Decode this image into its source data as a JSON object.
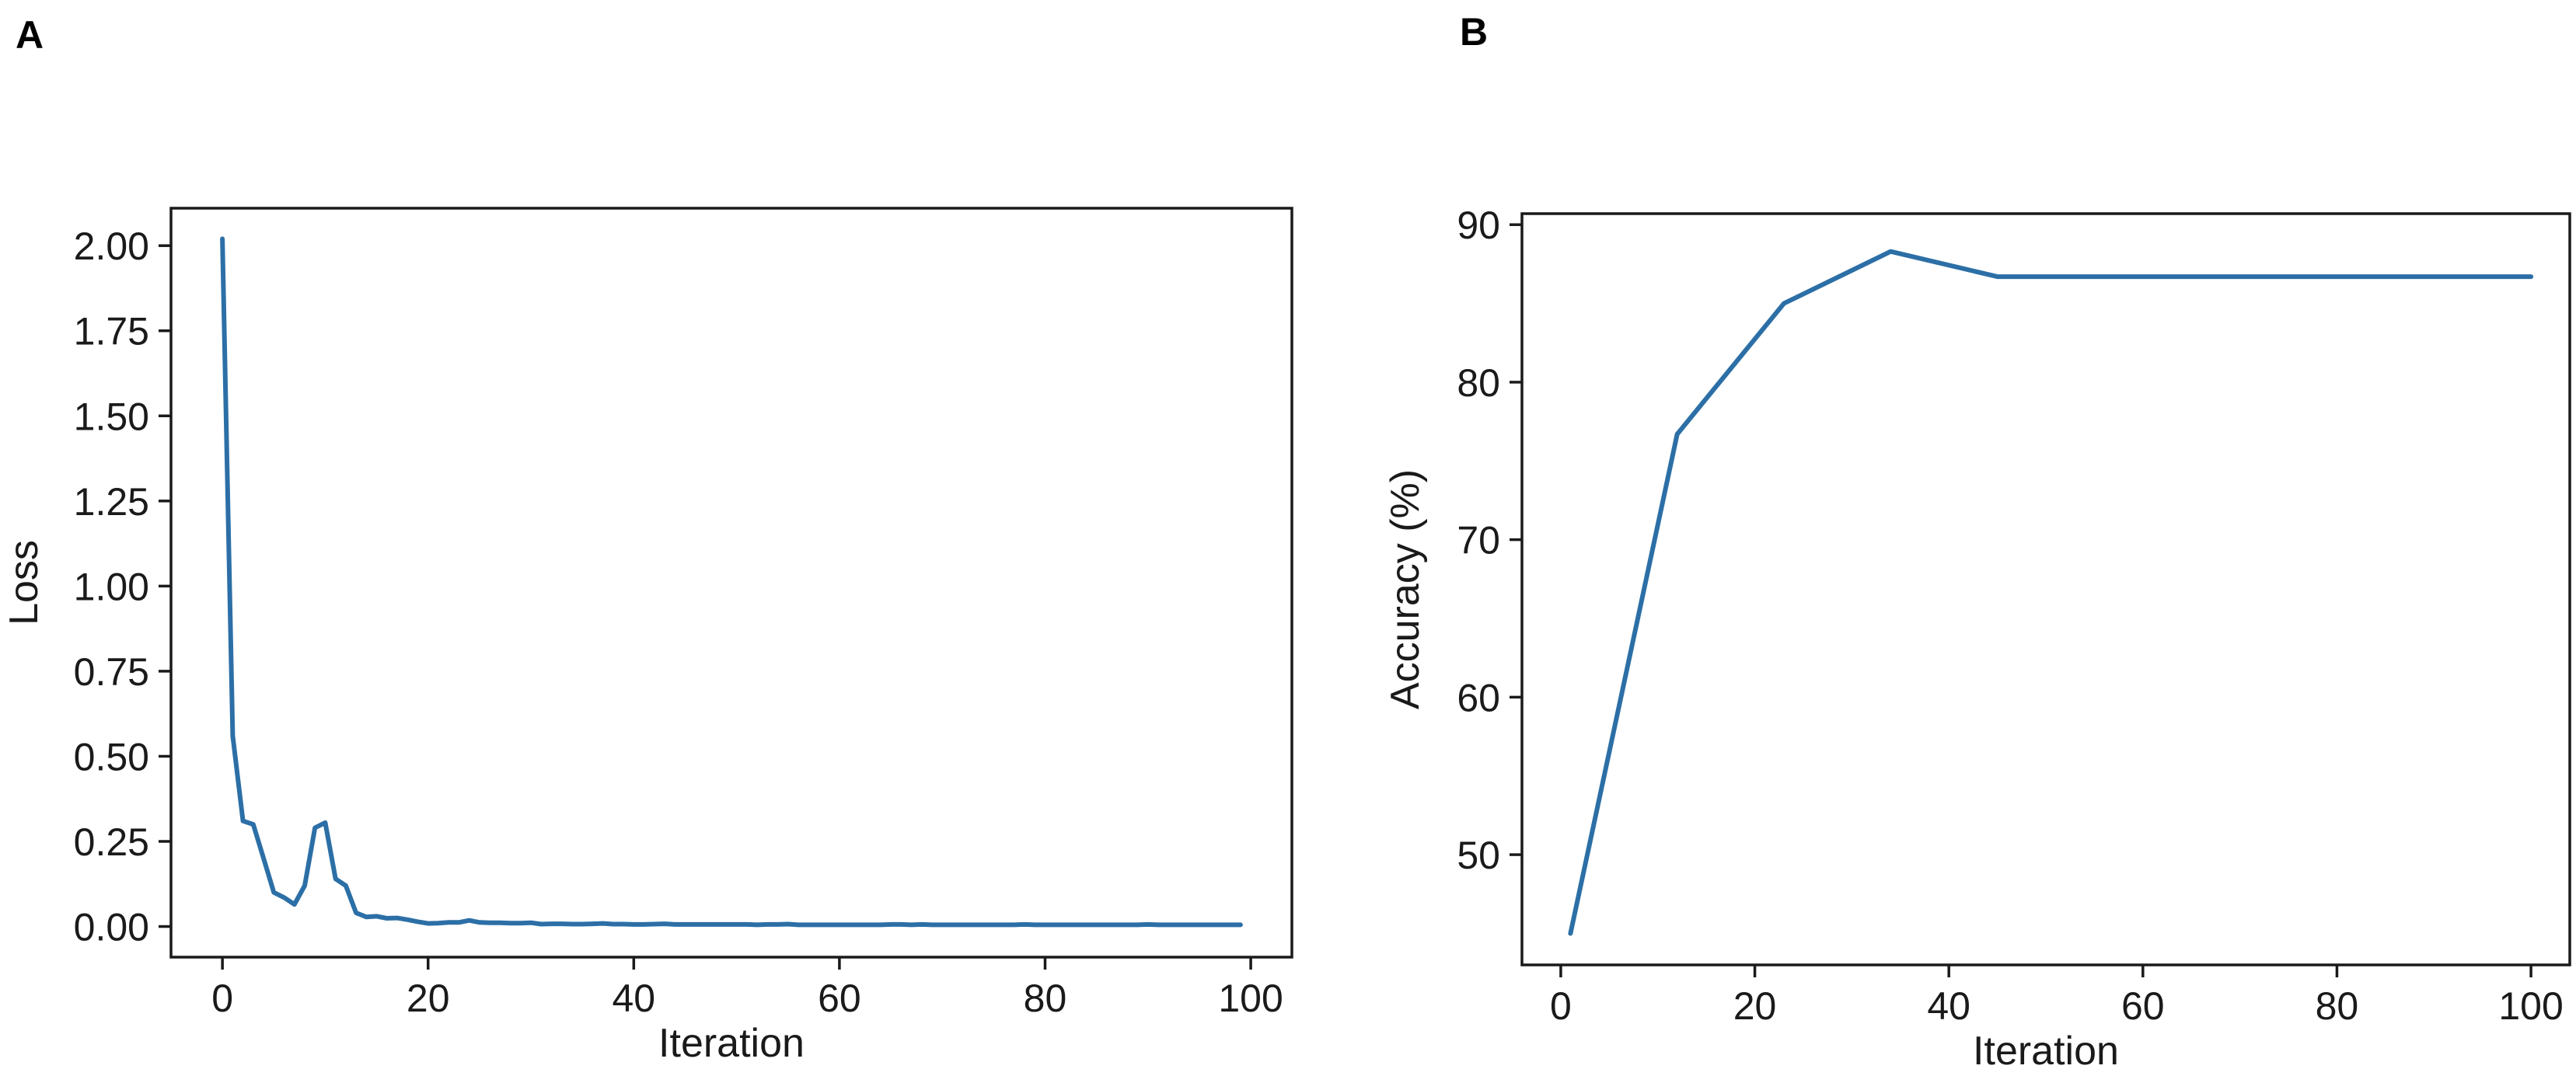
{
  "panels": [
    {
      "letter": "A"
    },
    {
      "letter": "B"
    }
  ],
  "colors": {
    "series": "#2c6fa6",
    "axes": "#1a1a1a"
  },
  "chart_data": [
    {
      "type": "line",
      "panel": "A",
      "title": "",
      "xlabel": "Iteration",
      "ylabel": "Loss",
      "xlim": [
        -5,
        104
      ],
      "ylim": [
        -0.09,
        2.11
      ],
      "xticks": [
        0,
        20,
        40,
        60,
        80,
        100
      ],
      "xtick_labels": [
        "0",
        "20",
        "40",
        "60",
        "80",
        "100"
      ],
      "yticks": [
        0,
        0.25,
        0.5,
        0.75,
        1.0,
        1.25,
        1.5,
        1.75,
        2.0
      ],
      "ytick_labels": [
        "0.00",
        "0.25",
        "0.50",
        "0.75",
        "1.00",
        "1.25",
        "1.50",
        "1.75",
        "2.00"
      ],
      "grid": false,
      "series": [
        {
          "x": [
            0,
            1,
            2,
            3,
            4,
            5,
            6,
            7,
            8,
            9,
            10,
            11,
            12,
            13,
            14,
            15,
            16,
            17,
            18,
            19,
            20,
            21,
            22,
            23,
            24,
            25,
            26,
            27,
            28,
            29,
            30,
            31,
            32,
            33,
            34,
            35,
            36,
            37,
            38,
            39,
            40,
            41,
            42,
            43,
            44,
            45,
            46,
            47,
            48,
            49,
            50,
            51,
            52,
            53,
            54,
            55,
            56,
            57,
            58,
            59,
            60,
            61,
            62,
            63,
            64,
            65,
            66,
            67,
            68,
            69,
            70,
            71,
            72,
            73,
            74,
            75,
            76,
            77,
            78,
            79,
            80,
            81,
            82,
            83,
            84,
            85,
            86,
            87,
            88,
            89,
            90,
            91,
            92,
            93,
            94,
            95,
            96,
            97,
            98,
            99
          ],
          "values": [
            2.02,
            0.56,
            0.31,
            0.3,
            0.2,
            0.1,
            0.085,
            0.065,
            0.12,
            0.29,
            0.305,
            0.14,
            0.12,
            0.04,
            0.028,
            0.03,
            0.024,
            0.025,
            0.02,
            0.014,
            0.009,
            0.01,
            0.012,
            0.012,
            0.018,
            0.012,
            0.011,
            0.011,
            0.01,
            0.01,
            0.011,
            0.007,
            0.008,
            0.008,
            0.007,
            0.007,
            0.008,
            0.009,
            0.007,
            0.007,
            0.006,
            0.006,
            0.007,
            0.008,
            0.006,
            0.006,
            0.006,
            0.006,
            0.006,
            0.006,
            0.006,
            0.006,
            0.005,
            0.006,
            0.006,
            0.007,
            0.005,
            0.005,
            0.005,
            0.005,
            0.005,
            0.005,
            0.005,
            0.005,
            0.005,
            0.006,
            0.006,
            0.005,
            0.006,
            0.005,
            0.005,
            0.005,
            0.005,
            0.005,
            0.005,
            0.005,
            0.005,
            0.005,
            0.006,
            0.005,
            0.005,
            0.005,
            0.005,
            0.005,
            0.005,
            0.005,
            0.005,
            0.005,
            0.005,
            0.005,
            0.006,
            0.005,
            0.005,
            0.005,
            0.005,
            0.005,
            0.005,
            0.005,
            0.005,
            0.005
          ]
        }
      ]
    },
    {
      "type": "line",
      "panel": "B",
      "title": "",
      "xlabel": "Iteration",
      "ylabel": "Accuracy (%)",
      "xlim": [
        -4,
        104
      ],
      "ylim": [
        43.0,
        90.7
      ],
      "xticks": [
        0,
        20,
        40,
        60,
        80,
        100
      ],
      "xtick_labels": [
        "0",
        "20",
        "40",
        "60",
        "80",
        "100"
      ],
      "yticks": [
        50,
        60,
        70,
        80,
        90
      ],
      "ytick_labels": [
        "50",
        "60",
        "70",
        "80",
        "90"
      ],
      "grid": false,
      "series": [
        {
          "x": [
            1,
            12,
            23,
            34,
            45,
            56,
            67,
            78,
            89,
            100
          ],
          "values": [
            45.0,
            76.7,
            85.0,
            88.3,
            86.7,
            86.7,
            86.7,
            86.7,
            86.7,
            86.7
          ]
        }
      ]
    }
  ]
}
